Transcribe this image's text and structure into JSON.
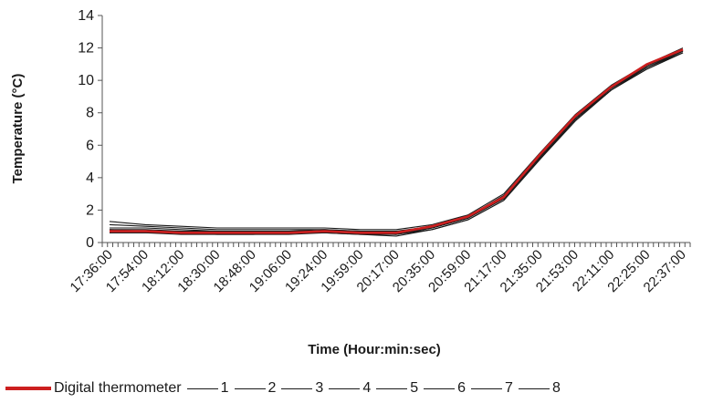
{
  "chart_data": {
    "type": "line",
    "ylabel": "Temperature (°C)",
    "xlabel": "Time (Hour:min:sec)",
    "ylim": [
      0,
      14
    ],
    "yticks": [
      0,
      2,
      4,
      6,
      8,
      10,
      12,
      14
    ],
    "xtick_labels": [
      "17:36:00",
      "17:54:00",
      "18:12:00",
      "18:30:00",
      "18:48:00",
      "19:06:00",
      "19:24:00",
      "19:59:00",
      "20:17:00",
      "20:35:00",
      "20:59:00",
      "21:17:00",
      "21:35:00",
      "21:53:00",
      "22:11:00",
      "22:25:00",
      "22:37:00"
    ],
    "grid": false,
    "legend_position": "bottom",
    "series": [
      {
        "name": "Digital thermometer",
        "color": "#cc1f1f",
        "values": [
          0.7,
          0.7,
          0.6,
          0.6,
          0.6,
          0.6,
          0.7,
          0.6,
          0.6,
          1.0,
          1.6,
          2.8,
          5.4,
          7.8,
          9.6,
          11.0,
          11.9
        ]
      },
      {
        "name": "1",
        "color": "#1a1a1a",
        "values": [
          1.3,
          1.1,
          1.0,
          0.9,
          0.9,
          0.9,
          0.9,
          0.8,
          0.8,
          1.1,
          1.7,
          3.0,
          5.5,
          7.9,
          9.7,
          11.0,
          12.0
        ]
      },
      {
        "name": "2",
        "color": "#1a1a1a",
        "values": [
          1.1,
          1.0,
          0.9,
          0.8,
          0.8,
          0.8,
          0.8,
          0.7,
          0.7,
          1.0,
          1.6,
          2.9,
          5.4,
          7.8,
          9.6,
          10.9,
          11.9
        ]
      },
      {
        "name": "3",
        "color": "#1a1a1a",
        "values": [
          0.9,
          0.9,
          0.8,
          0.7,
          0.7,
          0.7,
          0.8,
          0.7,
          0.6,
          1.0,
          1.6,
          2.8,
          5.3,
          7.7,
          9.5,
          10.9,
          11.8
        ]
      },
      {
        "name": "4",
        "color": "#1a1a1a",
        "values": [
          0.8,
          0.8,
          0.7,
          0.7,
          0.7,
          0.7,
          0.7,
          0.6,
          0.6,
          0.9,
          1.5,
          2.8,
          5.3,
          7.7,
          9.5,
          10.8,
          11.8
        ]
      },
      {
        "name": "5",
        "color": "#1a1a1a",
        "values": [
          0.8,
          0.7,
          0.7,
          0.6,
          0.6,
          0.6,
          0.7,
          0.6,
          0.5,
          0.9,
          1.5,
          2.7,
          5.2,
          7.6,
          9.5,
          10.8,
          11.8
        ]
      },
      {
        "name": "6",
        "color": "#1a1a1a",
        "values": [
          0.7,
          0.7,
          0.6,
          0.6,
          0.6,
          0.6,
          0.7,
          0.6,
          0.5,
          0.9,
          1.5,
          2.7,
          5.2,
          7.6,
          9.4,
          10.8,
          11.7
        ]
      },
      {
        "name": "7",
        "color": "#1a1a1a",
        "values": [
          0.6,
          0.6,
          0.6,
          0.5,
          0.5,
          0.6,
          0.6,
          0.5,
          0.5,
          0.8,
          1.4,
          2.6,
          5.1,
          7.6,
          9.4,
          10.7,
          11.7
        ]
      },
      {
        "name": "8",
        "color": "#1a1a1a",
        "values": [
          0.6,
          0.6,
          0.5,
          0.5,
          0.5,
          0.5,
          0.6,
          0.5,
          0.4,
          0.8,
          1.4,
          2.6,
          5.1,
          7.5,
          9.4,
          10.7,
          11.7
        ]
      }
    ]
  }
}
